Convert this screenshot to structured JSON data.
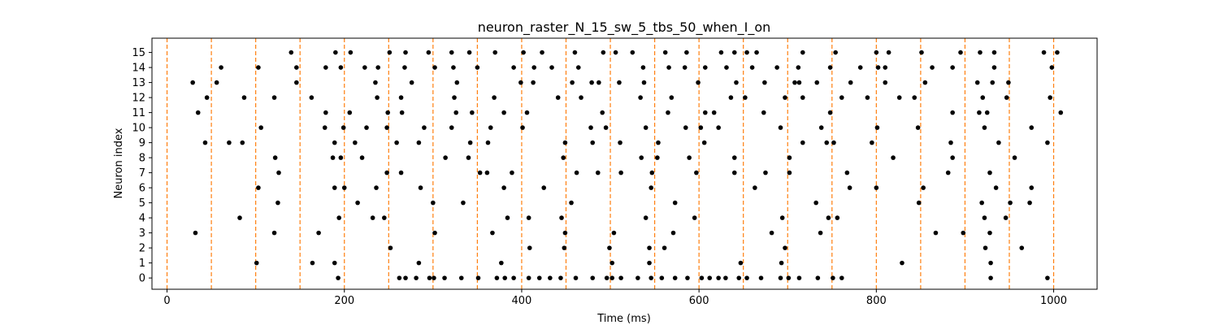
{
  "chart_data": {
    "type": "scatter",
    "title": "neuron_raster_N_15_sw_5_tbs_50_when_I_on",
    "xlabel": "Time (ms)",
    "ylabel": "Neuron index",
    "xlim": [
      -17,
      1049
    ],
    "ylim": [
      -0.75,
      15.95
    ],
    "x_ticks": [
      0,
      200,
      400,
      600,
      800,
      1000
    ],
    "y_ticks": [
      0,
      1,
      2,
      3,
      4,
      5,
      6,
      7,
      8,
      9,
      10,
      11,
      12,
      13,
      14,
      15
    ],
    "grid": false,
    "legend": "none",
    "marker_color": "#000000",
    "vline_color": "#ff7f0e",
    "stim_times_ms": [
      0,
      50,
      100,
      150,
      200,
      250,
      300,
      350,
      400,
      450,
      500,
      550,
      600,
      650,
      700,
      750,
      800,
      850,
      900,
      950,
      1000
    ],
    "spikes": [
      {
        "neuron": 0,
        "times": [
          193,
          262,
          269,
          281,
          296,
          301,
          313,
          332,
          351,
          372,
          381,
          391,
          408,
          420,
          432,
          444,
          461,
          480,
          496,
          502,
          512,
          531,
          546,
          558,
          573,
          587,
          603,
          612,
          622,
          630,
          645,
          654,
          670,
          692,
          701,
          713,
          734,
          751,
          761,
          929,
          993
        ]
      },
      {
        "neuron": 1,
        "times": [
          101,
          164,
          189,
          284,
          377,
          502,
          544,
          647,
          693,
          829,
          929
        ]
      },
      {
        "neuron": 2,
        "times": [
          252,
          409,
          448,
          499,
          544,
          561,
          697,
          923,
          964
        ]
      },
      {
        "neuron": 3,
        "times": [
          32,
          121,
          171,
          302,
          367,
          449,
          504,
          571,
          682,
          737,
          867,
          898,
          928
        ]
      },
      {
        "neuron": 4,
        "times": [
          82,
          194,
          232,
          245,
          384,
          408,
          445,
          540,
          595,
          694,
          746,
          756,
          922,
          946
        ]
      },
      {
        "neuron": 5,
        "times": [
          125,
          215,
          300,
          334,
          456,
          573,
          732,
          848,
          919,
          951,
          973
        ]
      },
      {
        "neuron": 6,
        "times": [
          103,
          189,
          200,
          236,
          286,
          380,
          425,
          546,
          663,
          770,
          800,
          853,
          935,
          975
        ]
      },
      {
        "neuron": 7,
        "times": [
          126,
          248,
          264,
          353,
          361,
          389,
          462,
          486,
          512,
          547,
          597,
          640,
          675,
          702,
          767,
          881,
          928
        ]
      },
      {
        "neuron": 8,
        "times": [
          122,
          187,
          196,
          220,
          314,
          340,
          447,
          535,
          553,
          589,
          640,
          702,
          819,
          886,
          956
        ]
      },
      {
        "neuron": 9,
        "times": [
          43,
          70,
          85,
          189,
          212,
          259,
          284,
          342,
          362,
          449,
          480,
          511,
          554,
          606,
          717,
          744,
          752,
          795,
          884,
          938,
          993
        ]
      },
      {
        "neuron": 10,
        "times": [
          106,
          178,
          199,
          225,
          248,
          290,
          321,
          365,
          401,
          478,
          495,
          540,
          585,
          602,
          622,
          692,
          738,
          801,
          847,
          922,
          975
        ]
      },
      {
        "neuron": 11,
        "times": [
          35,
          179,
          206,
          249,
          265,
          326,
          344,
          380,
          406,
          491,
          565,
          607,
          617,
          673,
          748,
          886,
          916,
          925,
          1008
        ]
      },
      {
        "neuron": 12,
        "times": [
          45,
          87,
          121,
          163,
          237,
          264,
          324,
          369,
          441,
          467,
          534,
          569,
          636,
          652,
          697,
          717,
          761,
          790,
          826,
          843,
          920,
          947,
          996
        ]
      },
      {
        "neuron": 13,
        "times": [
          29,
          56,
          146,
          235,
          276,
          327,
          399,
          413,
          457,
          479,
          487,
          510,
          538,
          599,
          642,
          674,
          708,
          713,
          733,
          771,
          810,
          855,
          914,
          931,
          949
        ]
      },
      {
        "neuron": 14,
        "times": [
          61,
          103,
          146,
          179,
          196,
          223,
          238,
          268,
          302,
          323,
          350,
          391,
          414,
          434,
          464,
          537,
          566,
          584,
          607,
          631,
          660,
          688,
          712,
          748,
          782,
          802,
          810,
          863,
          886,
          933,
          998
        ]
      },
      {
        "neuron": 15,
        "times": [
          140,
          190,
          207,
          251,
          269,
          295,
          321,
          341,
          370,
          402,
          423,
          460,
          492,
          506,
          525,
          562,
          586,
          625,
          640,
          654,
          665,
          717,
          754,
          800,
          814,
          851,
          895,
          917,
          933,
          989,
          1004
        ]
      }
    ]
  }
}
